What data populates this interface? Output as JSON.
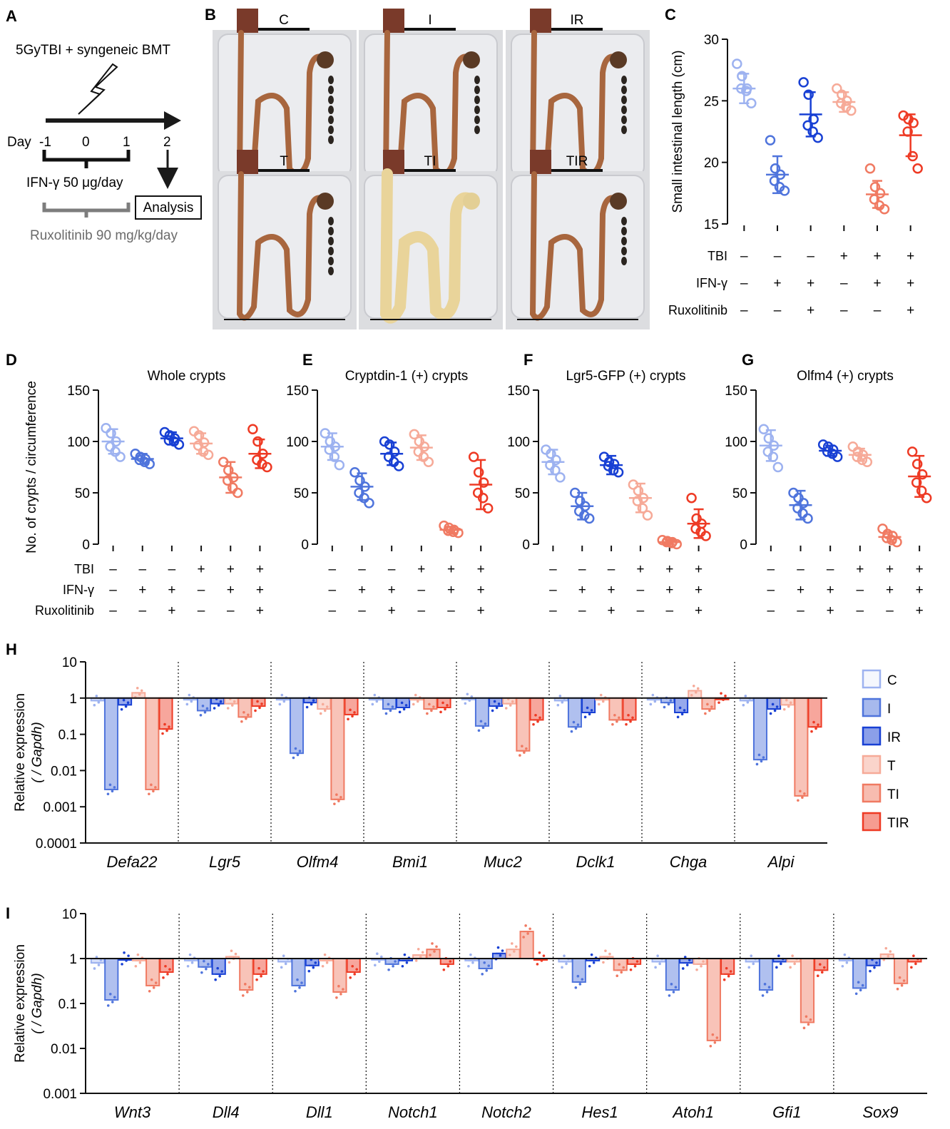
{
  "colors": {
    "C": "#9db2f0",
    "I": "#4f74dc",
    "IR": "#1840d4",
    "T": "#f6aa98",
    "TI": "#f07a62",
    "TIR": "#ee3a24"
  },
  "panel_A": {
    "letter": "A",
    "treatment": "5GyTBI + syngeneic BMT",
    "day_label": "Day",
    "days": [
      "-1",
      "0",
      "1",
      "2"
    ],
    "ifn_label": "IFN-γ 50 μg/day",
    "analysis_label": "Analysis",
    "rux_label": "Ruxolitinib 90 mg/kg/day"
  },
  "panel_B": {
    "letter": "B",
    "photos": [
      {
        "label": "C",
        "pale": false,
        "pellets": 7
      },
      {
        "label": "I",
        "pale": false,
        "pellets": 6
      },
      {
        "label": "IR",
        "pale": false,
        "pellets": 6
      },
      {
        "label": "T",
        "pale": false,
        "pellets": 6
      },
      {
        "label": "TI",
        "pale": true,
        "pellets": 0
      },
      {
        "label": "TIR",
        "pale": false,
        "pellets": 5
      }
    ]
  },
  "treatment_table": {
    "rows": [
      "TBI",
      "IFN-γ",
      "Ruxolitinib"
    ],
    "values": [
      [
        "–",
        "–",
        "–",
        "+",
        "+",
        "+"
      ],
      [
        "–",
        "+",
        "+",
        "–",
        "+",
        "+"
      ],
      [
        "–",
        "–",
        "+",
        "–",
        "–",
        "+"
      ]
    ]
  },
  "chart_data": [
    {
      "id": "C",
      "type": "scatter",
      "title": "",
      "ylabel": "Small intestinal length (cm)",
      "ylim": [
        15,
        30
      ],
      "yticks": [
        15,
        20,
        25,
        30
      ],
      "groups": [
        "C",
        "I",
        "IR",
        "T",
        "TI",
        "TIR"
      ],
      "means": [
        26.0,
        19.0,
        23.9,
        24.9,
        17.4,
        22.2
      ],
      "sd": [
        1.2,
        1.5,
        1.8,
        0.8,
        1.1,
        1.7
      ],
      "points": [
        [
          28.0,
          27.0,
          26.0,
          26.0,
          25.8,
          24.8
        ],
        [
          21.8,
          19.5,
          19.0,
          18.5,
          18.0,
          17.7
        ],
        [
          26.5,
          25.5,
          23.5,
          23.0,
          22.5,
          22.0
        ],
        [
          26.0,
          25.5,
          25.0,
          24.8,
          24.5,
          24.2
        ],
        [
          19.5,
          18.0,
          17.5,
          17.0,
          16.5,
          16.2
        ],
        [
          23.8,
          23.5,
          23.2,
          22.5,
          20.5,
          19.5
        ]
      ]
    },
    {
      "id": "D",
      "type": "scatter",
      "title": "Whole crypts",
      "ylabel": "No. of crypts / circumference",
      "ylim": [
        0,
        150
      ],
      "yticks": [
        0,
        50,
        100,
        150
      ],
      "groups": [
        "C",
        "I",
        "IR",
        "T",
        "TI",
        "TIR"
      ],
      "means": [
        100,
        83,
        103,
        98,
        65,
        88
      ],
      "sd": [
        12,
        5,
        6,
        10,
        15,
        14
      ],
      "points": [
        [
          113,
          108,
          100,
          95,
          90,
          85
        ],
        [
          88,
          85,
          83,
          82,
          80,
          78
        ],
        [
          109,
          106,
          103,
          101,
          100,
          97
        ],
        [
          110,
          106,
          99,
          96,
          90,
          87
        ],
        [
          80,
          72,
          65,
          62,
          55,
          50
        ],
        [
          112,
          100,
          88,
          82,
          78,
          75
        ]
      ]
    },
    {
      "id": "E",
      "type": "scatter",
      "title": "Cryptdin-1 (+) crypts",
      "ylabel": "",
      "ylim": [
        0,
        150
      ],
      "yticks": [
        0,
        50,
        100,
        150
      ],
      "groups": [
        "C",
        "I",
        "IR",
        "T",
        "TI",
        "TIR"
      ],
      "means": [
        95,
        56,
        88,
        94,
        14,
        58
      ],
      "sd": [
        13,
        13,
        11,
        12,
        3,
        24
      ],
      "points": [
        [
          108,
          100,
          95,
          92,
          85,
          77
        ],
        [
          70,
          62,
          56,
          50,
          45,
          40
        ],
        [
          100,
          97,
          90,
          85,
          80,
          76
        ],
        [
          107,
          100,
          95,
          90,
          85,
          80
        ],
        [
          18,
          16,
          14,
          13,
          12,
          11
        ],
        [
          85,
          70,
          60,
          50,
          45,
          35
        ]
      ]
    },
    {
      "id": "F",
      "type": "scatter",
      "title": "Lgr5-GFP (+) crypts",
      "ylabel": "",
      "ylim": [
        0,
        150
      ],
      "yticks": [
        0,
        50,
        100,
        150
      ],
      "groups": [
        "C",
        "I",
        "IR",
        "T",
        "TI",
        "TIR"
      ],
      "means": [
        80,
        37,
        77,
        45,
        2,
        20
      ],
      "sd": [
        12,
        13,
        9,
        14,
        2,
        14
      ],
      "points": [
        [
          92,
          88,
          82,
          77,
          72,
          65
        ],
        [
          50,
          42,
          37,
          32,
          28,
          25
        ],
        [
          85,
          80,
          78,
          76,
          72,
          70
        ],
        [
          58,
          52,
          45,
          42,
          35,
          28
        ],
        [
          4,
          3,
          2,
          2,
          1,
          0
        ],
        [
          45,
          25,
          20,
          15,
          12,
          8
        ]
      ]
    },
    {
      "id": "G",
      "type": "scatter",
      "title": "Olfm4 (+) crypts",
      "ylabel": "",
      "ylim": [
        0,
        150
      ],
      "yticks": [
        0,
        50,
        100,
        150
      ],
      "groups": [
        "C",
        "I",
        "IR",
        "T",
        "TI",
        "TIR"
      ],
      "means": [
        96,
        38,
        91,
        87,
        7,
        66
      ],
      "sd": [
        15,
        14,
        5,
        6,
        5,
        20
      ],
      "points": [
        [
          112,
          103,
          96,
          90,
          85,
          75
        ],
        [
          50,
          45,
          40,
          35,
          30,
          25
        ],
        [
          97,
          95,
          92,
          90,
          88,
          85
        ],
        [
          95,
          90,
          87,
          85,
          82,
          80
        ],
        [
          15,
          10,
          8,
          6,
          4,
          2
        ],
        [
          90,
          78,
          68,
          60,
          52,
          45
        ]
      ]
    },
    {
      "id": "H",
      "type": "bar",
      "title": "",
      "ylabel": "Relative expression",
      "ylabel2": "( / Gapdh)",
      "scale": "log",
      "ylim": [
        0.0001,
        10
      ],
      "yticks": [
        0.0001,
        0.001,
        0.01,
        0.1,
        1,
        10
      ],
      "ytick_labels": [
        "0.0001",
        "0.001",
        "0.01",
        "0.1",
        "1",
        "10"
      ],
      "series_names": [
        "C",
        "I",
        "IR",
        "T",
        "TI",
        "TIR"
      ],
      "categories": [
        "Defa22",
        "Lgr5",
        "Olfm4",
        "Bmi1",
        "Muc2",
        "Dclk1",
        "Chga",
        "Alpi"
      ],
      "values": [
        [
          0.85,
          0.003,
          0.65,
          1.4,
          0.003,
          0.14
        ],
        [
          0.9,
          0.45,
          0.7,
          0.7,
          0.3,
          0.6
        ],
        [
          0.9,
          0.03,
          0.75,
          0.5,
          0.0016,
          0.35
        ],
        [
          0.9,
          0.5,
          0.55,
          0.9,
          0.5,
          0.55
        ],
        [
          0.95,
          0.17,
          0.6,
          0.7,
          0.035,
          0.25
        ],
        [
          0.85,
          0.16,
          0.4,
          0.9,
          0.25,
          0.25
        ],
        [
          0.9,
          0.75,
          0.4,
          1.6,
          0.5,
          1.0
        ],
        [
          0.85,
          0.02,
          0.5,
          0.65,
          0.002,
          0.16
        ]
      ]
    },
    {
      "id": "I",
      "type": "bar",
      "title": "",
      "ylabel": "Relative expression",
      "ylabel2": "( / Gapdh)",
      "scale": "log",
      "ylim": [
        0.001,
        10
      ],
      "yticks": [
        0.001,
        0.01,
        0.1,
        1,
        10
      ],
      "ytick_labels": [
        "0.001",
        "0.01",
        "0.1",
        "1",
        "10"
      ],
      "series_names": [
        "C",
        "I",
        "IR",
        "T",
        "TI",
        "TIR"
      ],
      "categories": [
        "Wnt3",
        "Dll4",
        "Dll1",
        "Notch1",
        "Notch2",
        "Hes1",
        "Atoh1",
        "Gfi1",
        "Sox9"
      ],
      "values": [
        [
          0.8,
          0.12,
          1.0,
          0.9,
          0.25,
          0.5
        ],
        [
          0.9,
          0.65,
          0.45,
          1.1,
          0.2,
          0.45
        ],
        [
          0.85,
          0.25,
          0.7,
          0.9,
          0.18,
          0.5
        ],
        [
          0.95,
          0.75,
          0.9,
          1.2,
          1.6,
          0.75
        ],
        [
          0.9,
          0.6,
          1.3,
          1.6,
          4.0,
          1.0
        ],
        [
          0.85,
          0.3,
          0.9,
          1.1,
          0.55,
          0.75
        ],
        [
          0.85,
          0.2,
          0.8,
          0.75,
          0.015,
          0.45
        ],
        [
          0.85,
          0.2,
          0.85,
          0.85,
          0.038,
          0.55
        ],
        [
          0.9,
          0.22,
          0.7,
          1.25,
          0.28,
          0.85
        ]
      ]
    }
  ]
}
